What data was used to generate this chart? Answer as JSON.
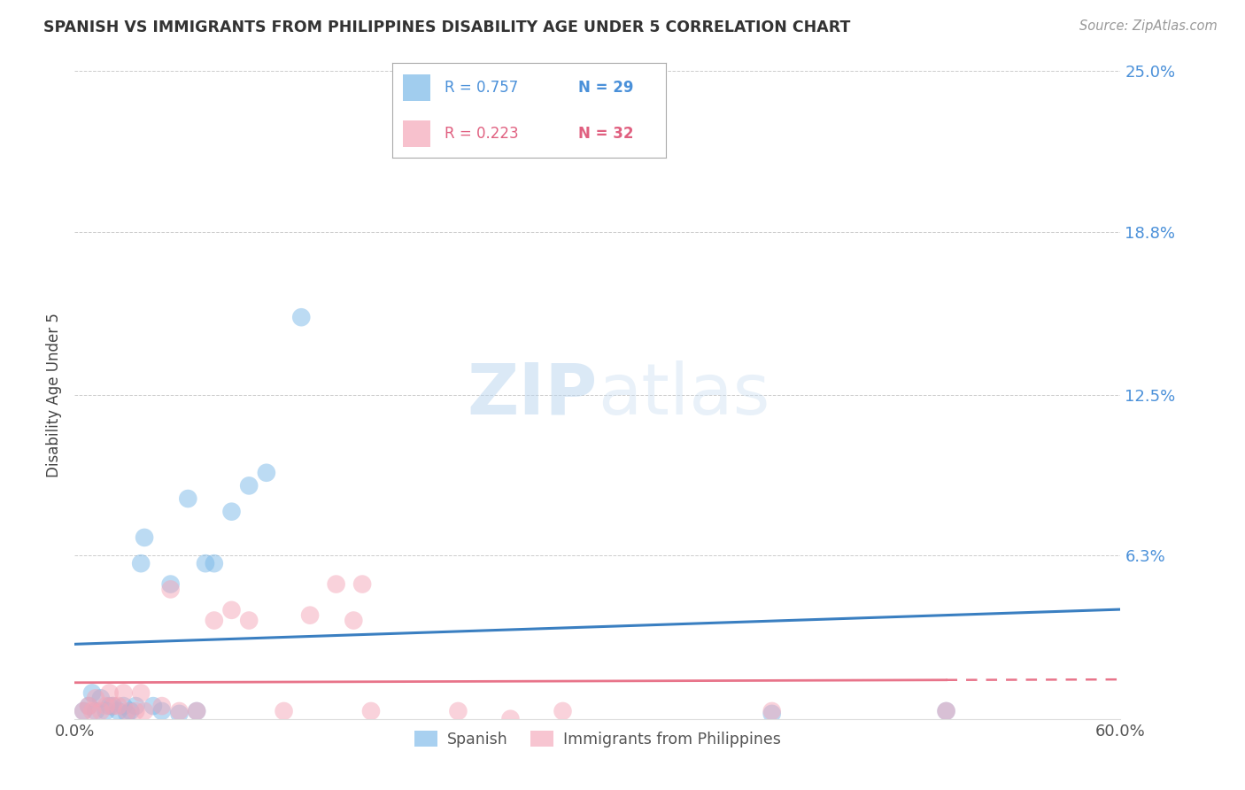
{
  "title": "SPANISH VS IMMIGRANTS FROM PHILIPPINES DISABILITY AGE UNDER 5 CORRELATION CHART",
  "source": "Source: ZipAtlas.com",
  "ylabel": "Disability Age Under 5",
  "xlim": [
    0.0,
    0.6
  ],
  "ylim": [
    0.0,
    0.25
  ],
  "xticks": [
    0.0,
    0.6
  ],
  "xticklabels": [
    "0.0%",
    "60.0%"
  ],
  "ytick_vals": [
    0.0,
    0.063,
    0.125,
    0.188,
    0.25
  ],
  "ytick_labels": [
    "",
    "6.3%",
    "12.5%",
    "18.8%",
    "25.0%"
  ],
  "blue_color": "#7ab8e8",
  "pink_color": "#f4a7b9",
  "blue_line_color": "#3a7fc1",
  "pink_line_color": "#e8748a",
  "watermark_color": "#d0e4f5",
  "blue_r": "R = 0.757",
  "blue_n": "N = 29",
  "pink_r": "R = 0.223",
  "pink_n": "N = 32",
  "blue_label": "Spanish",
  "pink_label": "Immigrants from Philippines",
  "spanish_x": [
    0.005,
    0.008,
    0.01,
    0.012,
    0.015,
    0.018,
    0.02,
    0.022,
    0.025,
    0.028,
    0.03,
    0.032,
    0.035,
    0.038,
    0.04,
    0.045,
    0.05,
    0.055,
    0.06,
    0.065,
    0.07,
    0.075,
    0.08,
    0.09,
    0.1,
    0.11,
    0.13,
    0.4,
    0.5
  ],
  "spanish_y": [
    0.003,
    0.005,
    0.01,
    0.003,
    0.008,
    0.003,
    0.005,
    0.005,
    0.003,
    0.005,
    0.002,
    0.003,
    0.005,
    0.06,
    0.07,
    0.005,
    0.003,
    0.052,
    0.002,
    0.085,
    0.003,
    0.06,
    0.06,
    0.08,
    0.09,
    0.095,
    0.155,
    0.002,
    0.003
  ],
  "philippines_x": [
    0.005,
    0.008,
    0.01,
    0.012,
    0.015,
    0.018,
    0.02,
    0.022,
    0.025,
    0.028,
    0.03,
    0.035,
    0.038,
    0.04,
    0.05,
    0.055,
    0.06,
    0.07,
    0.08,
    0.09,
    0.1,
    0.12,
    0.135,
    0.15,
    0.16,
    0.165,
    0.17,
    0.22,
    0.25,
    0.28,
    0.4,
    0.5
  ],
  "philippines_y": [
    0.003,
    0.005,
    0.003,
    0.008,
    0.003,
    0.005,
    0.01,
    0.005,
    0.005,
    0.01,
    0.003,
    0.003,
    0.01,
    0.003,
    0.005,
    0.05,
    0.003,
    0.003,
    0.038,
    0.042,
    0.038,
    0.003,
    0.04,
    0.052,
    0.038,
    0.052,
    0.003,
    0.003,
    0.0,
    0.003,
    0.003,
    0.003
  ],
  "background_color": "#ffffff",
  "grid_color": "#cccccc",
  "title_color": "#333333",
  "source_color": "#999999",
  "ytick_color": "#4a90d9",
  "xtick_color": "#555555"
}
